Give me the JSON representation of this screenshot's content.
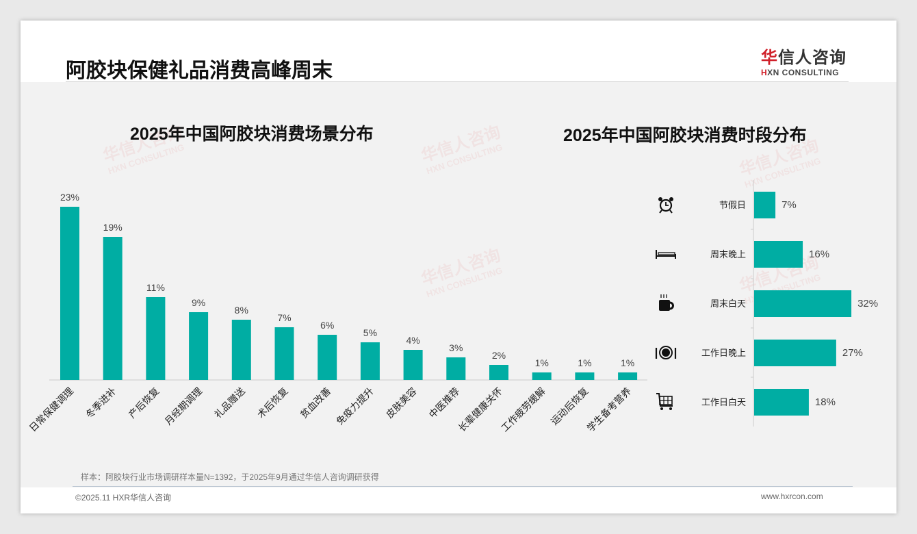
{
  "header": {
    "title": "阿胶块保健礼品消费高峰周末",
    "logo_cn": "华信人咨询",
    "logo_cn_first": "华",
    "logo_cn_rest": "信人咨询",
    "logo_en_first": "H",
    "logo_en_rest": "XN CONSULTING",
    "logo_en": "HXN CONSULTING"
  },
  "footer": {
    "note": "样本：阿胶块行业市场调研样本量N=1392，于2025年9月通过华信人咨询调研获得",
    "copyright": "©2025.11 HXR华信人咨询",
    "website": "www.hxrcon.com"
  },
  "colors": {
    "bar": "#00ada3",
    "title_accent": "#d0202a"
  },
  "chart_data": [
    {
      "type": "bar",
      "title": "2025年中国阿胶块消费场景分布",
      "categories": [
        "日常保健调理",
        "冬季进补",
        "产后恢复",
        "月经期调理",
        "礼品赠送",
        "术后恢复",
        "贫血改善",
        "免疫力提升",
        "皮肤美容",
        "中医推荐",
        "长辈健康关怀",
        "工作疲劳缓解",
        "运动后恢复",
        "学生备考营养"
      ],
      "values": [
        23,
        19,
        11,
        9,
        8,
        7,
        6,
        5,
        4,
        3,
        2,
        1,
        1,
        1
      ],
      "labels": [
        "23%",
        "19%",
        "11%",
        "9%",
        "8%",
        "7%",
        "6%",
        "5%",
        "4%",
        "3%",
        "2%",
        "1%",
        "1%",
        "1%"
      ],
      "unit": "%",
      "ylim": [
        0,
        25
      ]
    },
    {
      "type": "bar",
      "orientation": "horizontal",
      "title": "2025年中国阿胶块消费时段分布",
      "categories": [
        "节假日",
        "周末晚上",
        "周末白天",
        "工作日晚上",
        "工作日白天"
      ],
      "icons": [
        "alarm-clock-icon",
        "bed-icon",
        "coffee-mug-icon",
        "dinner-plate-icon",
        "shopping-cart-icon"
      ],
      "values": [
        7,
        16,
        32,
        27,
        18
      ],
      "labels": [
        "7%",
        "16%",
        "32%",
        "27%",
        "18%"
      ],
      "unit": "%",
      "xlim": [
        0,
        35
      ]
    }
  ]
}
